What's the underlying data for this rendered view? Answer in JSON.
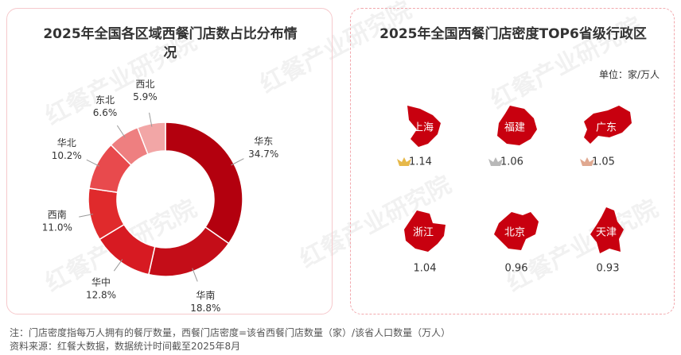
{
  "chart_data": [
    {
      "type": "pie",
      "title": "2025年全国各区域西餐门店数占比分布情况",
      "categories": [
        "华东",
        "华南",
        "华中",
        "西南",
        "华北",
        "东北",
        "西北"
      ],
      "values": [
        34.7,
        18.8,
        12.8,
        11.0,
        10.2,
        6.6,
        5.9
      ],
      "value_labels": [
        "34.7%",
        "18.8%",
        "12.8%",
        "11.0%",
        "10.2%",
        "6.6%",
        "5.9%"
      ],
      "colors": [
        "#b3000e",
        "#c40d18",
        "#d71a22",
        "#e02a2c",
        "#e84a4d",
        "#ee7f80",
        "#f2a6a6"
      ]
    },
    {
      "type": "pictogram",
      "title": "2025年全国西餐门店密度TOP6省级行政区",
      "unit": "单位：家/万人",
      "categories": [
        "上海",
        "福建",
        "广东",
        "浙江",
        "北京",
        "天津"
      ],
      "values": [
        1.14,
        1.06,
        1.05,
        1.04,
        0.96,
        0.93
      ],
      "color": "#c8000f"
    }
  ],
  "notes": [
    "注：门店密度指每万人拥有的餐厅数量，西餐门店密度=该省西餐门店数量（家）/该省人口数量（万人）",
    "资料来源：红餐大数据，数据统计时间截至2025年8月"
  ],
  "watermark": "红餐产业研究院"
}
